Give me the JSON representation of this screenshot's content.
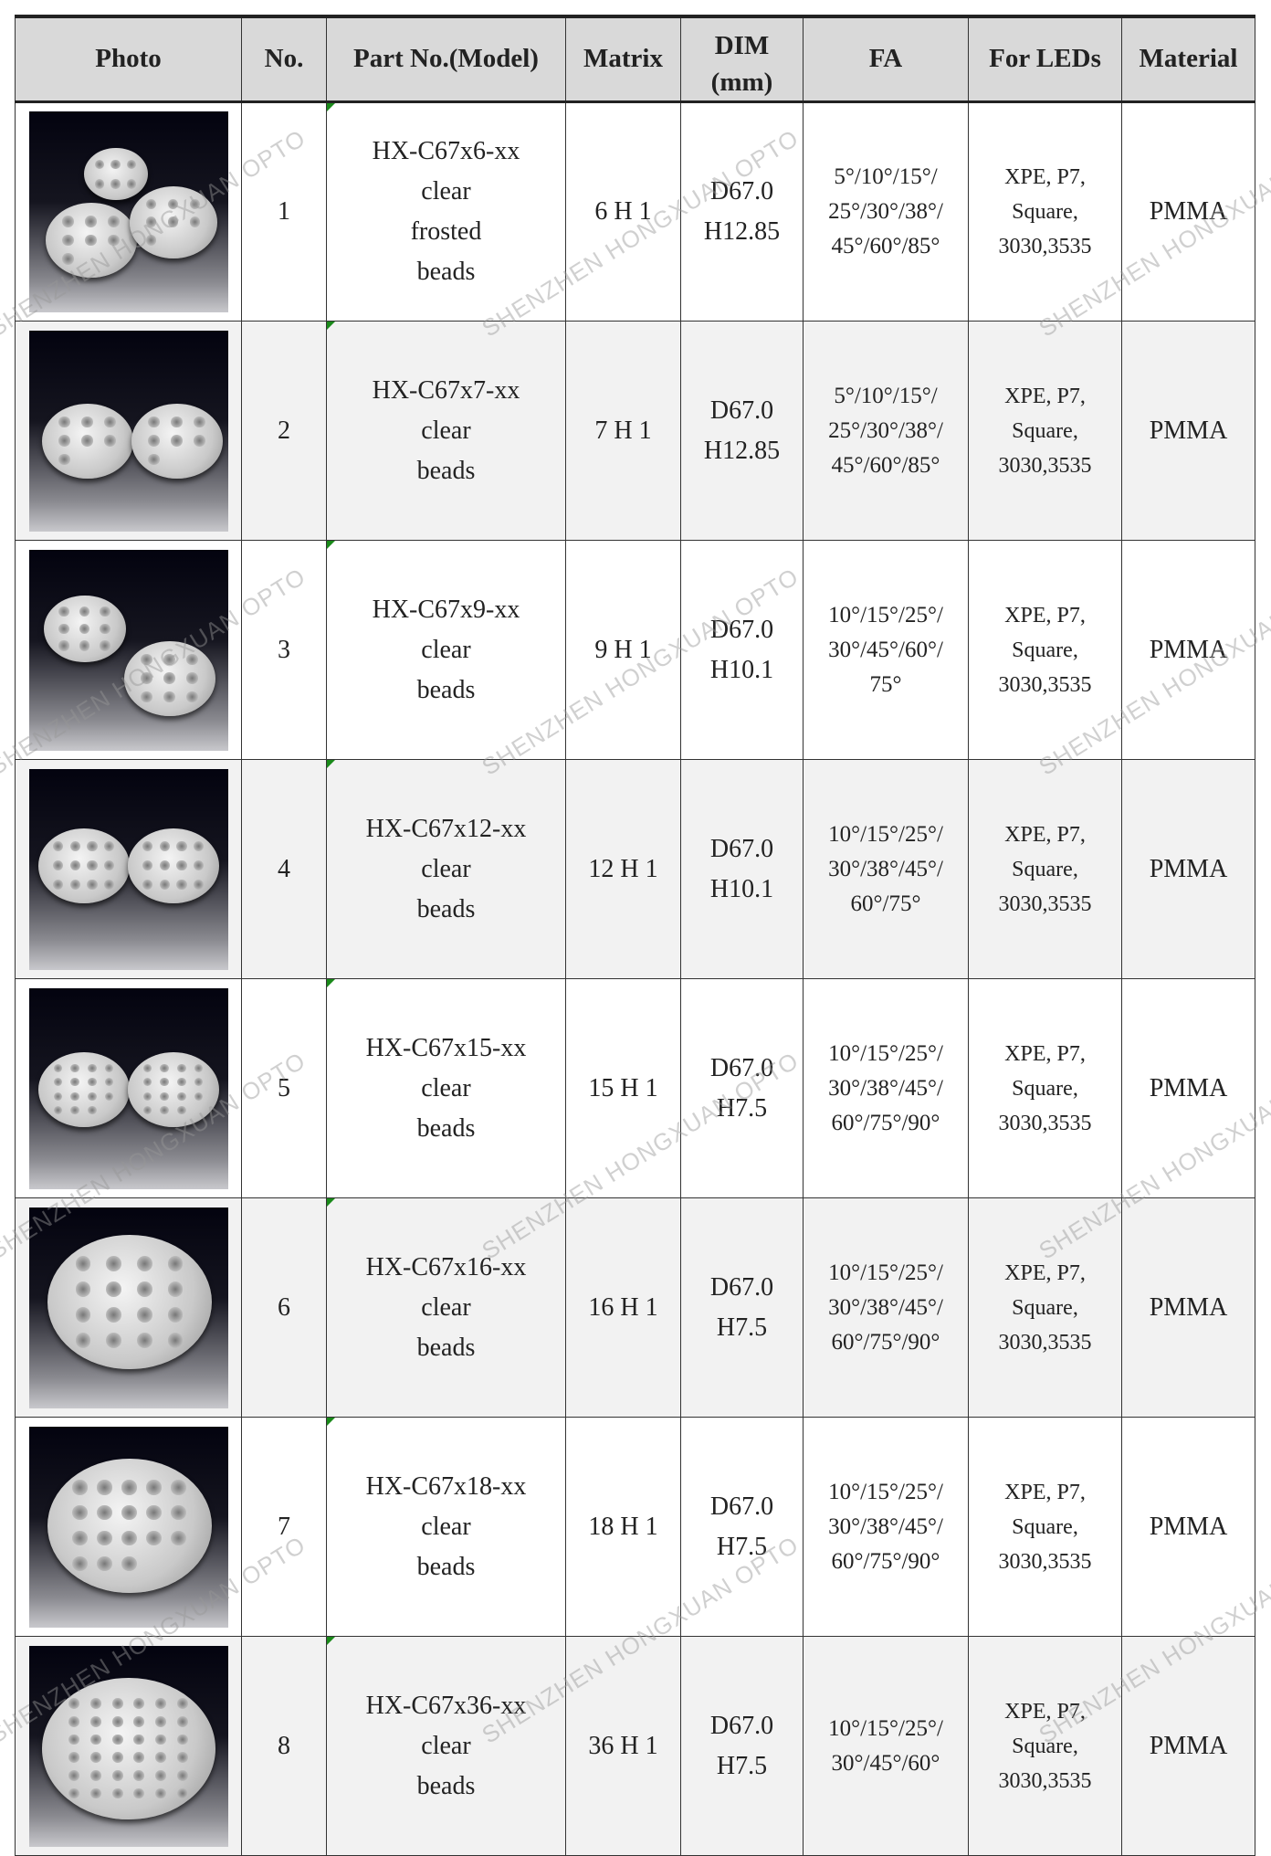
{
  "headers": {
    "photo": "Photo",
    "no": "No.",
    "part_no": "Part No.(Model)",
    "matrix": "Matrix",
    "dim": "DIM (mm)",
    "fa": "FA",
    "for_leds": "For LEDs",
    "material": "Material"
  },
  "watermark": "SHENZHEN HONGXUAN OPTO",
  "rows": [
    {
      "no": "1",
      "model": "HX-C67x6-xx",
      "desc": [
        "clear",
        "frosted",
        "beads"
      ],
      "matrix": "6 H 1",
      "dim": [
        "D67.0",
        "H12.85"
      ],
      "fa": [
        "5°/10°/15°/",
        "25°/30°/38°/",
        "45°/60°/85°"
      ],
      "leds": [
        "XPE, P7,",
        "Square,",
        "3030,3535"
      ],
      "material": "PMMA"
    },
    {
      "no": "2",
      "model": "HX-C67x7-xx",
      "desc": [
        "clear",
        "beads"
      ],
      "matrix": "7 H 1",
      "dim": [
        "D67.0",
        "H12.85"
      ],
      "fa": [
        "5°/10°/15°/",
        "25°/30°/38°/",
        "45°/60°/85°"
      ],
      "leds": [
        "XPE, P7,",
        "Square,",
        "3030,3535"
      ],
      "material": "PMMA"
    },
    {
      "no": "3",
      "model": "HX-C67x9-xx",
      "desc": [
        "clear",
        "beads"
      ],
      "matrix": "9 H 1",
      "dim": [
        "D67.0",
        "H10.1"
      ],
      "fa": [
        "10°/15°/25°/",
        "30°/45°/60°/",
        "75°"
      ],
      "leds": [
        "XPE, P7,",
        "Square,",
        "3030,3535"
      ],
      "material": "PMMA"
    },
    {
      "no": "4",
      "model": "HX-C67x12-xx",
      "desc": [
        "clear",
        "beads"
      ],
      "matrix": "12 H 1",
      "dim": [
        "D67.0",
        "H10.1"
      ],
      "fa": [
        "10°/15°/25°/",
        "30°/38°/45°/",
        "60°/75°"
      ],
      "leds": [
        "XPE, P7,",
        "Square,",
        "3030,3535"
      ],
      "material": "PMMA"
    },
    {
      "no": "5",
      "model": "HX-C67x15-xx",
      "desc": [
        "clear",
        "beads"
      ],
      "matrix": "15 H 1",
      "dim": [
        "D67.0",
        "H7.5"
      ],
      "fa": [
        "10°/15°/25°/",
        "30°/38°/45°/",
        "60°/75°/90°"
      ],
      "leds": [
        "XPE, P7,",
        "Square,",
        "3030,3535"
      ],
      "material": "PMMA"
    },
    {
      "no": "6",
      "model": "HX-C67x16-xx",
      "desc": [
        "clear",
        "beads"
      ],
      "matrix": "16 H 1",
      "dim": [
        "D67.0",
        "H7.5"
      ],
      "fa": [
        "10°/15°/25°/",
        "30°/38°/45°/",
        "60°/75°/90°"
      ],
      "leds": [
        "XPE, P7,",
        "Square,",
        "3030,3535"
      ],
      "material": "PMMA"
    },
    {
      "no": "7",
      "model": "HX-C67x18-xx",
      "desc": [
        "clear",
        "beads"
      ],
      "matrix": "18 H 1",
      "dim": [
        "D67.0",
        "H7.5"
      ],
      "fa": [
        "10°/15°/25°/",
        "30°/38°/45°/",
        "60°/75°/90°"
      ],
      "leds": [
        "XPE, P7,",
        "Square,",
        "3030,3535"
      ],
      "material": "PMMA"
    },
    {
      "no": "8",
      "model": "HX-C67x36-xx",
      "desc": [
        "clear",
        "beads"
      ],
      "matrix": "36 H 1",
      "dim": [
        "D67.0",
        "H7.5"
      ],
      "fa": [
        "10°/15°/25°/",
        "30°/45°/60°"
      ],
      "leds": [
        "XPE, P7,",
        "Square,",
        "3030,3535"
      ],
      "material": "PMMA"
    }
  ]
}
